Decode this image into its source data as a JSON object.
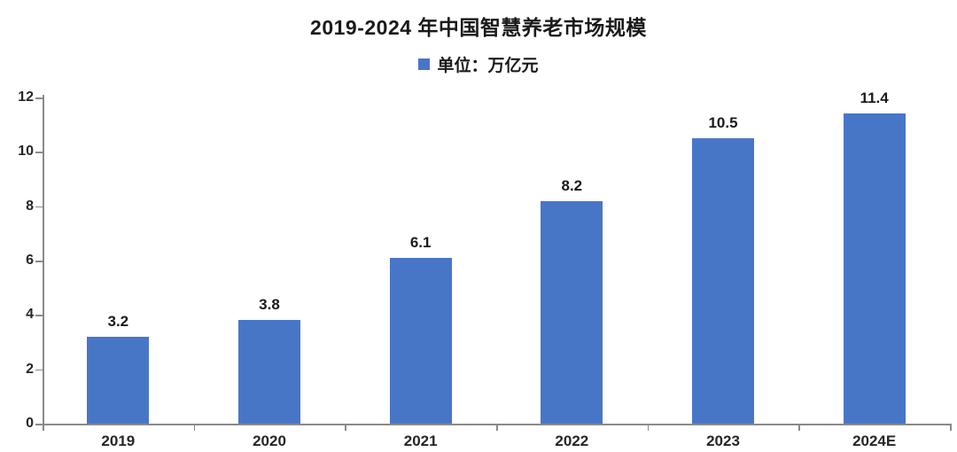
{
  "title": "2019-2024 年中国智慧养老市场规模",
  "legend": {
    "label": "单位：万亿元"
  },
  "colors": {
    "bar": "#4876C7",
    "axis": "#8a8a8a",
    "text": "#1a1a1a"
  },
  "chart_data": {
    "type": "bar",
    "title": "2019-2024 年中国智慧养老市场规模",
    "legend_label": "单位：万亿元",
    "categories": [
      "2019",
      "2020",
      "2021",
      "2022",
      "2023",
      "2024E"
    ],
    "values": [
      3.2,
      3.8,
      6.1,
      8.2,
      10.5,
      11.4
    ],
    "data_labels": [
      "3.2",
      "3.8",
      "6.1",
      "8.2",
      "10.5",
      "11.4"
    ],
    "xlabel": "",
    "ylabel": "",
    "ylim": [
      0,
      12
    ],
    "yticks": [
      0,
      2,
      4,
      6,
      8,
      10,
      12
    ],
    "grid": false,
    "legend_position": "top-center",
    "bar_color": "#4876C7"
  }
}
